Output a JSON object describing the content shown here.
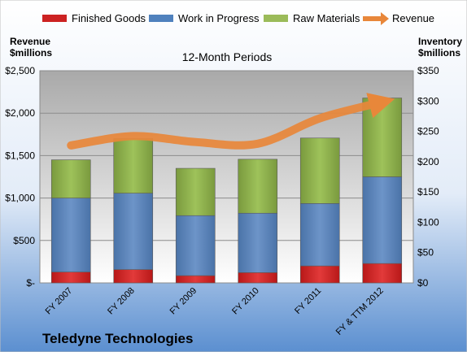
{
  "chart_data": {
    "type": "bar",
    "stacked": true,
    "title": "12-Month Periods",
    "company": "Teledyne Technologies",
    "categories": [
      "FY 2007",
      "FY 2008",
      "FY 2009",
      "FY 2010",
      "FY 2011",
      "FY & TTM 2012"
    ],
    "series": [
      {
        "name": "Finished Goods",
        "color": "#cc2222",
        "axis": "right",
        "values": [
          18,
          22,
          12,
          17,
          28,
          32
        ]
      },
      {
        "name": "Work in Progress",
        "color": "#4f81bd",
        "axis": "right",
        "values": [
          122,
          126,
          99,
          98,
          103,
          143
        ]
      },
      {
        "name": "Raw Materials",
        "color": "#9bbb59",
        "axis": "right",
        "values": [
          63,
          90,
          78,
          89,
          108,
          130
        ]
      },
      {
        "name": "Revenue",
        "color": "#e8873a",
        "axis": "left",
        "type": "line",
        "values": [
          1620,
          1730,
          1660,
          1640,
          1940,
          2130
        ]
      }
    ],
    "left_axis": {
      "label_line1": "Revenue",
      "label_line2": "$millions",
      "ylim": [
        0,
        2500
      ],
      "ticks": [
        0,
        500,
        1000,
        1500,
        2000,
        2500
      ],
      "tick_labels": [
        "$-",
        "$500",
        "$1,000",
        "$1,500",
        "$2,000",
        "$2,500"
      ]
    },
    "right_axis": {
      "label_line1": "Inventory",
      "label_line2": "$millions",
      "ylim": [
        0,
        350
      ],
      "ticks": [
        0,
        50,
        100,
        150,
        200,
        250,
        300,
        350
      ],
      "tick_labels": [
        "$0",
        "$50",
        "$100",
        "$150",
        "$200",
        "$250",
        "$300",
        "$350"
      ]
    },
    "legend_position": "top",
    "grid": true
  }
}
